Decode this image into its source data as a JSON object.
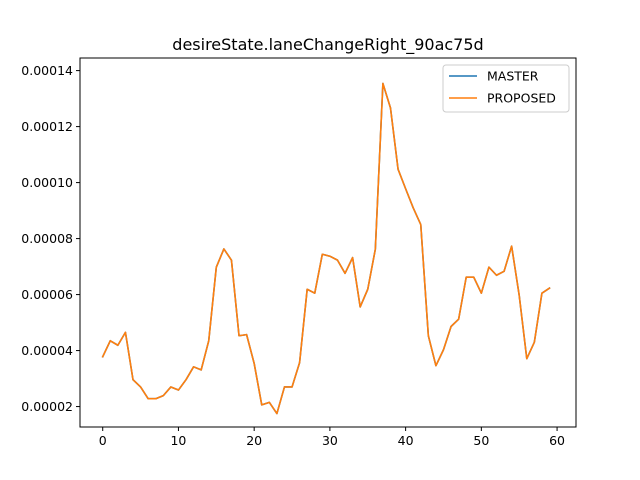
{
  "chart_data": {
    "type": "line",
    "title": "desireState.laneChangeRight_90ac75d",
    "xlabel": "",
    "ylabel": "",
    "xlim": [
      -3,
      62.5
    ],
    "ylim": [
      1.27e-05,
      0.0001445
    ],
    "x_ticks": [
      0,
      10,
      20,
      30,
      40,
      50,
      60
    ],
    "y_ticks": [
      2e-05,
      4e-05,
      6e-05,
      8e-05,
      0.0001,
      0.00012,
      0.00014
    ],
    "x_tick_labels": [
      "0",
      "10",
      "20",
      "30",
      "40",
      "50",
      "60"
    ],
    "y_tick_labels": [
      "0.00002",
      "0.00004",
      "0.00006",
      "0.00008",
      "0.00010",
      "0.00012",
      "0.00014"
    ],
    "grid": false,
    "legend_position": "top-right",
    "x": [
      0,
      1,
      2,
      3,
      4,
      5,
      6,
      7,
      8,
      9,
      10,
      11,
      12,
      13,
      14,
      15,
      16,
      17,
      18,
      19,
      20,
      21,
      22,
      23,
      24,
      25,
      26,
      27,
      28,
      29,
      30,
      31,
      32,
      33,
      34,
      35,
      36,
      37,
      38,
      39,
      40,
      41,
      42,
      43,
      44,
      45,
      46,
      47,
      48,
      49,
      50,
      51,
      52,
      53,
      54,
      55,
      56,
      57,
      58,
      59
    ],
    "series": [
      {
        "name": "MASTER",
        "color": "#1f77b4",
        "values": [
          3.78e-05,
          4.35e-05,
          4.19e-05,
          4.65e-05,
          2.96e-05,
          2.7e-05,
          2.28e-05,
          2.28e-05,
          2.39e-05,
          2.7e-05,
          2.59e-05,
          2.96e-05,
          3.42e-05,
          3.31e-05,
          4.35e-05,
          6.98e-05,
          7.63e-05,
          7.23e-05,
          4.53e-05,
          4.57e-05,
          3.54e-05,
          2.06e-05,
          2.15e-05,
          1.75e-05,
          2.7e-05,
          2.7e-05,
          3.57e-05,
          6.19e-05,
          6.05e-05,
          7.44e-05,
          7.37e-05,
          7.23e-05,
          6.76e-05,
          7.32e-05,
          5.56e-05,
          6.19e-05,
          7.62e-05,
          0.0001354,
          0.0001267,
          0.0001048,
          9.78e-05,
          9.1e-05,
          8.5e-05,
          4.53e-05,
          3.46e-05,
          4.03e-05,
          4.86e-05,
          5.12e-05,
          6.62e-05,
          6.62e-05,
          6.05e-05,
          6.98e-05,
          6.69e-05,
          6.83e-05,
          7.73e-05,
          5.97e-05,
          3.71e-05,
          4.3e-05,
          6.05e-05,
          6.23e-05
        ]
      },
      {
        "name": "PROPOSED",
        "color": "#ff7f0e",
        "values": [
          3.78e-05,
          4.35e-05,
          4.19e-05,
          4.65e-05,
          2.96e-05,
          2.7e-05,
          2.28e-05,
          2.28e-05,
          2.39e-05,
          2.7e-05,
          2.59e-05,
          2.96e-05,
          3.42e-05,
          3.31e-05,
          4.35e-05,
          6.98e-05,
          7.63e-05,
          7.23e-05,
          4.53e-05,
          4.57e-05,
          3.54e-05,
          2.06e-05,
          2.15e-05,
          1.75e-05,
          2.7e-05,
          2.7e-05,
          3.57e-05,
          6.19e-05,
          6.05e-05,
          7.44e-05,
          7.37e-05,
          7.23e-05,
          6.76e-05,
          7.32e-05,
          5.56e-05,
          6.19e-05,
          7.62e-05,
          0.0001354,
          0.0001267,
          0.0001048,
          9.78e-05,
          9.1e-05,
          8.5e-05,
          4.53e-05,
          3.46e-05,
          4.03e-05,
          4.86e-05,
          5.12e-05,
          6.62e-05,
          6.62e-05,
          6.05e-05,
          6.98e-05,
          6.69e-05,
          6.83e-05,
          7.73e-05,
          5.97e-05,
          3.71e-05,
          4.3e-05,
          6.05e-05,
          6.23e-05
        ]
      }
    ]
  }
}
